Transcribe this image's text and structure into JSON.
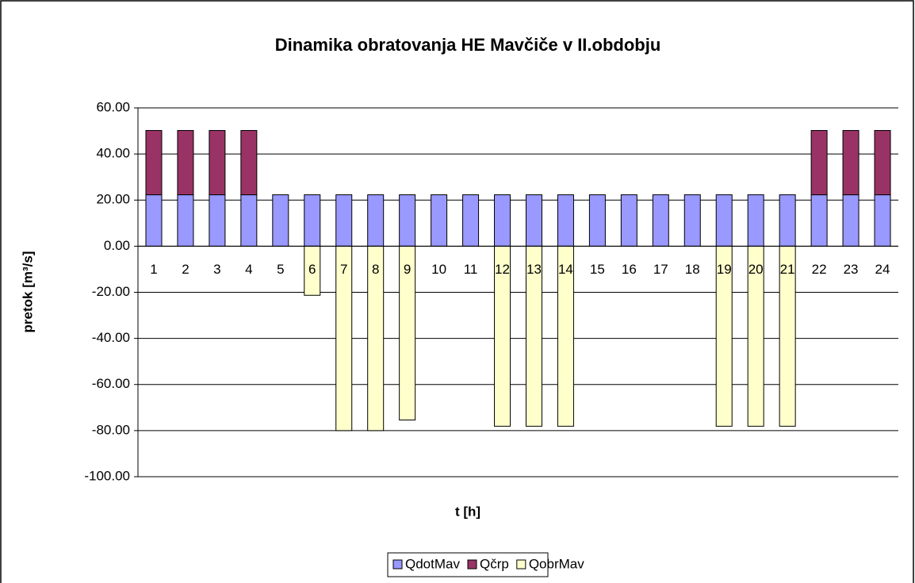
{
  "chart_data": {
    "type": "stacked_bar",
    "title": "Dinamika obratovanja HE Mavčiče v II.obdobju",
    "y_label": "pretok [m³/s]",
    "x_label": "t [h]",
    "categories": [
      "1",
      "2",
      "3",
      "4",
      "5",
      "6",
      "7",
      "8",
      "9",
      "10",
      "11",
      "12",
      "13",
      "14",
      "15",
      "16",
      "17",
      "18",
      "19",
      "20",
      "21",
      "22",
      "23",
      "24"
    ],
    "series": [
      {
        "name": "QdotMav",
        "color": "#9999ff",
        "values": [
          22.3,
          22.3,
          22.3,
          22.3,
          22.3,
          22.3,
          22.3,
          22.3,
          22.3,
          22.3,
          22.3,
          22.3,
          22.3,
          22.3,
          22.3,
          22.3,
          22.3,
          22.3,
          22.3,
          22.3,
          22.3,
          22.3,
          22.3,
          22.3
        ]
      },
      {
        "name": "Qčrp",
        "color": "#993366",
        "values": [
          27.9,
          27.9,
          27.9,
          27.9,
          0,
          0,
          0,
          0,
          0,
          0,
          0,
          0,
          0,
          0,
          0,
          0,
          0,
          0,
          0,
          0,
          0,
          27.9,
          27.9,
          27.9
        ]
      },
      {
        "name": "QobrMav",
        "color": "#ffffcc",
        "values": [
          0,
          0,
          0,
          0,
          0,
          -21.3,
          -80,
          -80,
          -75.4,
          0,
          0,
          -78.1,
          -78.1,
          -78.1,
          0,
          0,
          0,
          0,
          -78.1,
          -78.1,
          -78.1,
          0,
          0,
          0
        ]
      }
    ],
    "ylim": [
      -100,
      60
    ],
    "yticks": [
      {
        "value": -100,
        "label": "-100.00"
      },
      {
        "value": -80,
        "label": "-80.00"
      },
      {
        "value": -60,
        "label": "-60.00"
      },
      {
        "value": -40,
        "label": "-40.00"
      },
      {
        "value": -20,
        "label": "-20.00"
      },
      {
        "value": 0,
        "label": "0.00"
      },
      {
        "value": 20,
        "label": "20.00"
      },
      {
        "value": 40,
        "label": "40.00"
      },
      {
        "value": 60,
        "label": "60.00"
      }
    ],
    "grid": true,
    "legend": "bottom"
  }
}
